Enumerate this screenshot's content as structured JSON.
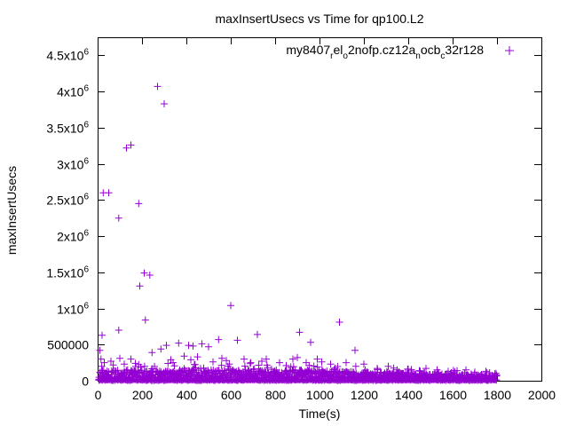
{
  "chart_data": {
    "type": "scatter",
    "title": "maxInsertUsecs vs Time for qp100.L2",
    "xlabel": "Time(s)",
    "ylabel": "maxInsertUsecs",
    "xlim": [
      0,
      2000
    ],
    "ylim": [
      0,
      4750000
    ],
    "x_ticks": [
      {
        "value": 0,
        "label": "0"
      },
      {
        "value": 200,
        "label": "200"
      },
      {
        "value": 400,
        "label": "400"
      },
      {
        "value": 600,
        "label": "600"
      },
      {
        "value": 800,
        "label": "800"
      },
      {
        "value": 1000,
        "label": "1000"
      },
      {
        "value": 1200,
        "label": "1200"
      },
      {
        "value": 1400,
        "label": "1400"
      },
      {
        "value": 1600,
        "label": "1600"
      },
      {
        "value": 1800,
        "label": "1800"
      },
      {
        "value": 2000,
        "label": "2000"
      }
    ],
    "y_ticks": [
      {
        "value": 0,
        "base": "0",
        "exp": ""
      },
      {
        "value": 500000,
        "base": "500000",
        "exp": ""
      },
      {
        "value": 1000000,
        "base": "1x10",
        "exp": "6"
      },
      {
        "value": 1500000,
        "base": "1.5x10",
        "exp": "6"
      },
      {
        "value": 2000000,
        "base": "2x10",
        "exp": "6"
      },
      {
        "value": 2500000,
        "base": "2.5x10",
        "exp": "6"
      },
      {
        "value": 3000000,
        "base": "3x10",
        "exp": "6"
      },
      {
        "value": 3500000,
        "base": "3.5x10",
        "exp": "6"
      },
      {
        "value": 4000000,
        "base": "4x10",
        "exp": "6"
      },
      {
        "value": 4500000,
        "base": "4.5x10",
        "exp": "6"
      }
    ],
    "grid": false,
    "legend": {
      "placement": "top-right",
      "parts": [
        {
          "text": "my8407",
          "sub": false
        },
        {
          "text": "r",
          "sub": true
        },
        {
          "text": "el",
          "sub": false
        },
        {
          "text": "o",
          "sub": true
        },
        {
          "text": "2nofp.cz12a",
          "sub": false
        },
        {
          "text": "n",
          "sub": true
        },
        {
          "text": "ocb",
          "sub": false
        },
        {
          "text": "c",
          "sub": true
        },
        {
          "text": "32r128",
          "sub": false
        }
      ]
    },
    "marker": "+",
    "color": "#9400d3",
    "series": [
      {
        "points": [
          [
            20,
            630000
          ],
          [
            25,
            2600000
          ],
          [
            50,
            2600000
          ],
          [
            95,
            2250000
          ],
          [
            95,
            700000
          ],
          [
            130,
            3220000
          ],
          [
            150,
            3260000
          ],
          [
            185,
            2450000
          ],
          [
            190,
            1310000
          ],
          [
            210,
            1490000
          ],
          [
            235,
            1460000
          ],
          [
            270,
            4070000
          ],
          [
            300,
            3830000
          ],
          [
            215,
            840000
          ],
          [
            600,
            1040000
          ],
          [
            1090,
            810000
          ],
          [
            910,
            670000
          ],
          [
            720,
            640000
          ],
          [
            630,
            560000
          ],
          [
            545,
            570000
          ],
          [
            365,
            520000
          ],
          [
            410,
            490000
          ],
          [
            430,
            480000
          ],
          [
            470,
            510000
          ],
          [
            500,
            470000
          ],
          [
            1160,
            420000
          ],
          [
            960,
            530000
          ],
          [
            310,
            490000
          ],
          [
            285,
            440000
          ],
          [
            245,
            390000
          ],
          [
            10,
            420000
          ],
          [
            15,
            300000
          ],
          [
            30,
            250000
          ],
          [
            60,
            270000
          ],
          [
            100,
            310000
          ],
          [
            120,
            230000
          ],
          [
            150,
            300000
          ],
          [
            170,
            240000
          ],
          [
            330,
            290000
          ],
          [
            340,
            250000
          ],
          [
            390,
            340000
          ],
          [
            420,
            290000
          ],
          [
            450,
            330000
          ],
          [
            520,
            260000
          ],
          [
            560,
            310000
          ],
          [
            580,
            280000
          ],
          [
            660,
            300000
          ],
          [
            690,
            250000
          ],
          [
            740,
            270000
          ],
          [
            760,
            300000
          ],
          [
            820,
            250000
          ],
          [
            850,
            210000
          ],
          [
            880,
            300000
          ],
          [
            900,
            320000
          ],
          [
            940,
            250000
          ],
          [
            990,
            300000
          ],
          [
            1010,
            260000
          ],
          [
            1050,
            230000
          ],
          [
            1120,
            250000
          ],
          [
            1200,
            230000
          ],
          [
            1260,
            170000
          ],
          [
            1310,
            200000
          ],
          [
            1350,
            150000
          ],
          [
            1400,
            160000
          ],
          [
            1450,
            140000
          ],
          [
            1480,
            170000
          ],
          [
            1530,
            150000
          ],
          [
            1580,
            130000
          ],
          [
            1620,
            140000
          ],
          [
            1660,
            150000
          ],
          [
            1700,
            120000
          ],
          [
            1750,
            130000
          ]
        ]
      }
    ]
  }
}
